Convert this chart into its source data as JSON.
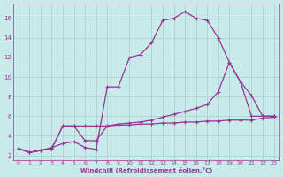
{
  "background_color": "#c8eae8",
  "grid_color": "#a8ccca",
  "line_color": "#993399",
  "xlabel": "Windchill (Refroidissement éolien,°C)",
  "xlim": [
    -0.5,
    23.5
  ],
  "ylim": [
    1.5,
    17.5
  ],
  "xticks": [
    0,
    1,
    2,
    3,
    4,
    5,
    6,
    7,
    8,
    9,
    10,
    11,
    12,
    13,
    14,
    15,
    16,
    17,
    18,
    19,
    20,
    21,
    22,
    23
  ],
  "yticks": [
    2,
    4,
    6,
    8,
    10,
    12,
    14,
    16
  ],
  "line1_x": [
    0,
    1,
    2,
    3,
    4,
    5,
    6,
    7,
    8,
    9,
    10,
    11,
    12,
    13,
    14,
    15,
    16,
    17,
    18,
    19,
    20,
    21,
    22,
    23
  ],
  "line1_y": [
    2.7,
    2.3,
    2.5,
    2.8,
    3.2,
    3.4,
    2.8,
    2.6,
    9.0,
    9.0,
    12.0,
    12.3,
    13.5,
    15.8,
    16.0,
    16.7,
    16.0,
    15.8,
    14.0,
    11.5,
    9.5,
    8.1,
    6.0,
    6.0
  ],
  "line2_x": [
    0,
    1,
    2,
    3,
    4,
    5,
    6,
    7,
    8,
    9,
    10,
    11,
    12,
    13,
    14,
    15,
    16,
    17,
    18,
    19,
    20,
    21,
    22,
    23
  ],
  "line2_y": [
    2.7,
    2.3,
    2.5,
    2.7,
    5.0,
    5.0,
    3.5,
    3.5,
    5.0,
    5.2,
    5.3,
    5.4,
    5.6,
    5.9,
    6.2,
    6.5,
    6.8,
    7.2,
    8.5,
    11.5,
    9.5,
    6.0,
    6.0,
    6.0
  ],
  "line3_x": [
    0,
    1,
    2,
    3,
    4,
    5,
    6,
    7,
    8,
    9,
    10,
    11,
    12,
    13,
    14,
    15,
    16,
    17,
    18,
    19,
    20,
    21,
    22,
    23
  ],
  "line3_y": [
    2.7,
    2.3,
    2.5,
    2.7,
    5.0,
    5.0,
    5.0,
    5.0,
    5.0,
    5.1,
    5.1,
    5.2,
    5.2,
    5.3,
    5.3,
    5.4,
    5.4,
    5.5,
    5.5,
    5.6,
    5.6,
    5.6,
    5.8,
    5.9
  ]
}
